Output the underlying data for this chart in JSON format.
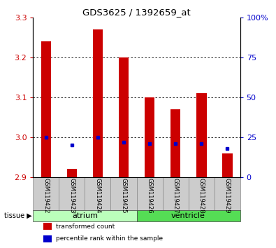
{
  "title": "GDS3625 / 1392659_at",
  "samples": [
    "GSM119422",
    "GSM119423",
    "GSM119424",
    "GSM119425",
    "GSM119426",
    "GSM119427",
    "GSM119428",
    "GSM119429"
  ],
  "tissue_groups": [
    {
      "name": "atrium",
      "color": "#bbffbb",
      "samples_idx": [
        0,
        1,
        2,
        3
      ]
    },
    {
      "name": "ventricle",
      "color": "#55dd55",
      "samples_idx": [
        4,
        5,
        6,
        7
      ]
    }
  ],
  "red_values": [
    3.24,
    2.92,
    3.27,
    3.2,
    3.1,
    3.07,
    3.11,
    2.96
  ],
  "blue_percentiles": [
    25,
    20,
    25,
    22,
    21,
    21,
    21,
    18
  ],
  "y_min": 2.9,
  "y_max": 3.3,
  "y_ticks_left": [
    2.9,
    3.0,
    3.1,
    3.2,
    3.3
  ],
  "y_ticks_right_vals": [
    0,
    25,
    50,
    75,
    100
  ],
  "y_ticks_right_labels": [
    "0",
    "25",
    "50",
    "75",
    "100%"
  ],
  "bar_color": "#cc0000",
  "blue_color": "#0000cc",
  "bg_color": "#ffffff",
  "left_tick_color": "#cc0000",
  "right_tick_color": "#0000cc",
  "grid_yticks": [
    3.0,
    3.1,
    3.2
  ],
  "bar_width": 0.4,
  "legend_items": [
    {
      "label": "transformed count",
      "color": "#cc0000"
    },
    {
      "label": "percentile rank within the sample",
      "color": "#0000cc"
    }
  ]
}
